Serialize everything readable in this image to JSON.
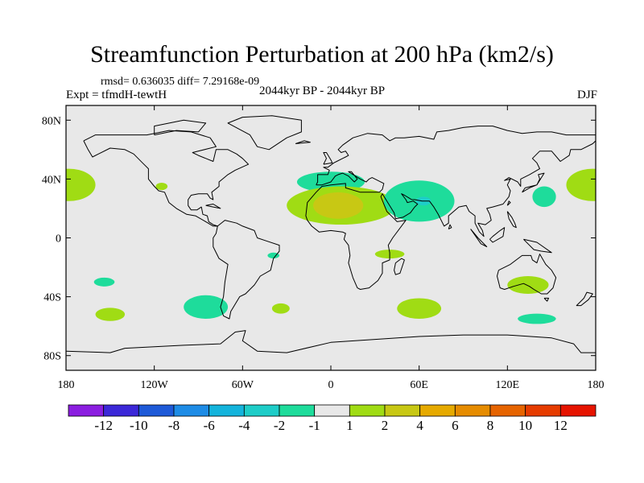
{
  "chart_data": {
    "type": "heatmap",
    "title": "Streamfunction Perturbation at 200 hPa (km2/s)",
    "subtitle": "rmsd= 0.636035 diff= 7.29168e-09",
    "left_label": "Expt = tfmdH-tewtH",
    "center_label": "2044kyr BP - 2044kyr BP",
    "right_label": "DJF",
    "xlim": [
      -180,
      180
    ],
    "ylim": [
      -90,
      90
    ],
    "x_ticks": [
      {
        "value": -180,
        "label": "180"
      },
      {
        "value": -120,
        "label": "120W"
      },
      {
        "value": -60,
        "label": "60W"
      },
      {
        "value": 0,
        "label": "0"
      },
      {
        "value": 60,
        "label": "60E"
      },
      {
        "value": 120,
        "label": "120E"
      },
      {
        "value": 180,
        "label": "180"
      }
    ],
    "y_ticks": [
      {
        "value": 80,
        "label": "80N"
      },
      {
        "value": 40,
        "label": "40N"
      },
      {
        "value": 0,
        "label": "0"
      },
      {
        "value": -40,
        "label": "40S"
      },
      {
        "value": -80,
        "label": "80S"
      }
    ],
    "background_color": "#e8e8e8",
    "colorbar": {
      "colors": [
        "#8b1ee0",
        "#3c28d8",
        "#1e5ad8",
        "#1e8ce6",
        "#14b4dc",
        "#1ecdc8",
        "#1edc9b",
        "#e8e8e8",
        "#a0dc14",
        "#c8c814",
        "#e6aa00",
        "#e68c00",
        "#e66400",
        "#e63c00",
        "#e61400"
      ],
      "labels": [
        "-12",
        "-10",
        "-8",
        "-6",
        "-4",
        "-2",
        "-1",
        "1",
        "2",
        "4",
        "6",
        "8",
        "10",
        "12"
      ]
    },
    "anomalies": [
      {
        "lon": -178,
        "lat": 36,
        "rx": 18,
        "ry": 11,
        "value": 2,
        "color": "#a0dc14"
      },
      {
        "lon": 178,
        "lat": 36,
        "rx": 18,
        "ry": 11,
        "value": 2,
        "color": "#a0dc14"
      },
      {
        "lon": -115,
        "lat": 35,
        "rx": 4,
        "ry": 2.5,
        "value": 2,
        "color": "#a0dc14"
      },
      {
        "lon": -154,
        "lat": -30,
        "rx": 7,
        "ry": 3,
        "value": -1,
        "color": "#1edc9b"
      },
      {
        "lon": -150,
        "lat": -52,
        "rx": 10,
        "ry": 4.5,
        "value": 2,
        "color": "#a0dc14"
      },
      {
        "lon": -85,
        "lat": -47,
        "rx": 15,
        "ry": 8,
        "value": -1,
        "color": "#1edc9b"
      },
      {
        "lon": -34,
        "lat": -48,
        "rx": 6,
        "ry": 3.5,
        "value": 2,
        "color": "#a0dc14"
      },
      {
        "lon": -39,
        "lat": -12,
        "rx": 4,
        "ry": 2,
        "value": -1,
        "color": "#1edc9b"
      },
      {
        "lon": 0,
        "lat": 38,
        "rx": 23,
        "ry": 7,
        "value": -1,
        "color": "#1edc9b"
      },
      {
        "lon": 7,
        "lat": 22,
        "rx": 37,
        "ry": 13,
        "value": 2,
        "color": "#a0dc14"
      },
      {
        "lon": 5,
        "lat": 22,
        "rx": 17,
        "ry": 9,
        "value": 4,
        "color": "#c8c814"
      },
      {
        "lon": 60,
        "lat": 25,
        "rx": 24,
        "ry": 14,
        "value": -1,
        "color": "#1edc9b"
      },
      {
        "lon": 63,
        "lat": 25,
        "rx": 5,
        "ry": 3,
        "value": -2,
        "color": "#1ecdc8"
      },
      {
        "lon": 40,
        "lat": -11,
        "rx": 10,
        "ry": 3,
        "value": 2,
        "color": "#a0dc14"
      },
      {
        "lon": 145,
        "lat": 28,
        "rx": 8,
        "ry": 7,
        "value": -1,
        "color": "#1edc9b"
      },
      {
        "lon": 60,
        "lat": -48,
        "rx": 15,
        "ry": 7,
        "value": 2,
        "color": "#a0dc14"
      },
      {
        "lon": 134,
        "lat": -32,
        "rx": 14,
        "ry": 6,
        "value": 2,
        "color": "#a0dc14"
      },
      {
        "lon": 140,
        "lat": -55,
        "rx": 13,
        "ry": 3.5,
        "value": -1,
        "color": "#1edc9b"
      }
    ]
  }
}
